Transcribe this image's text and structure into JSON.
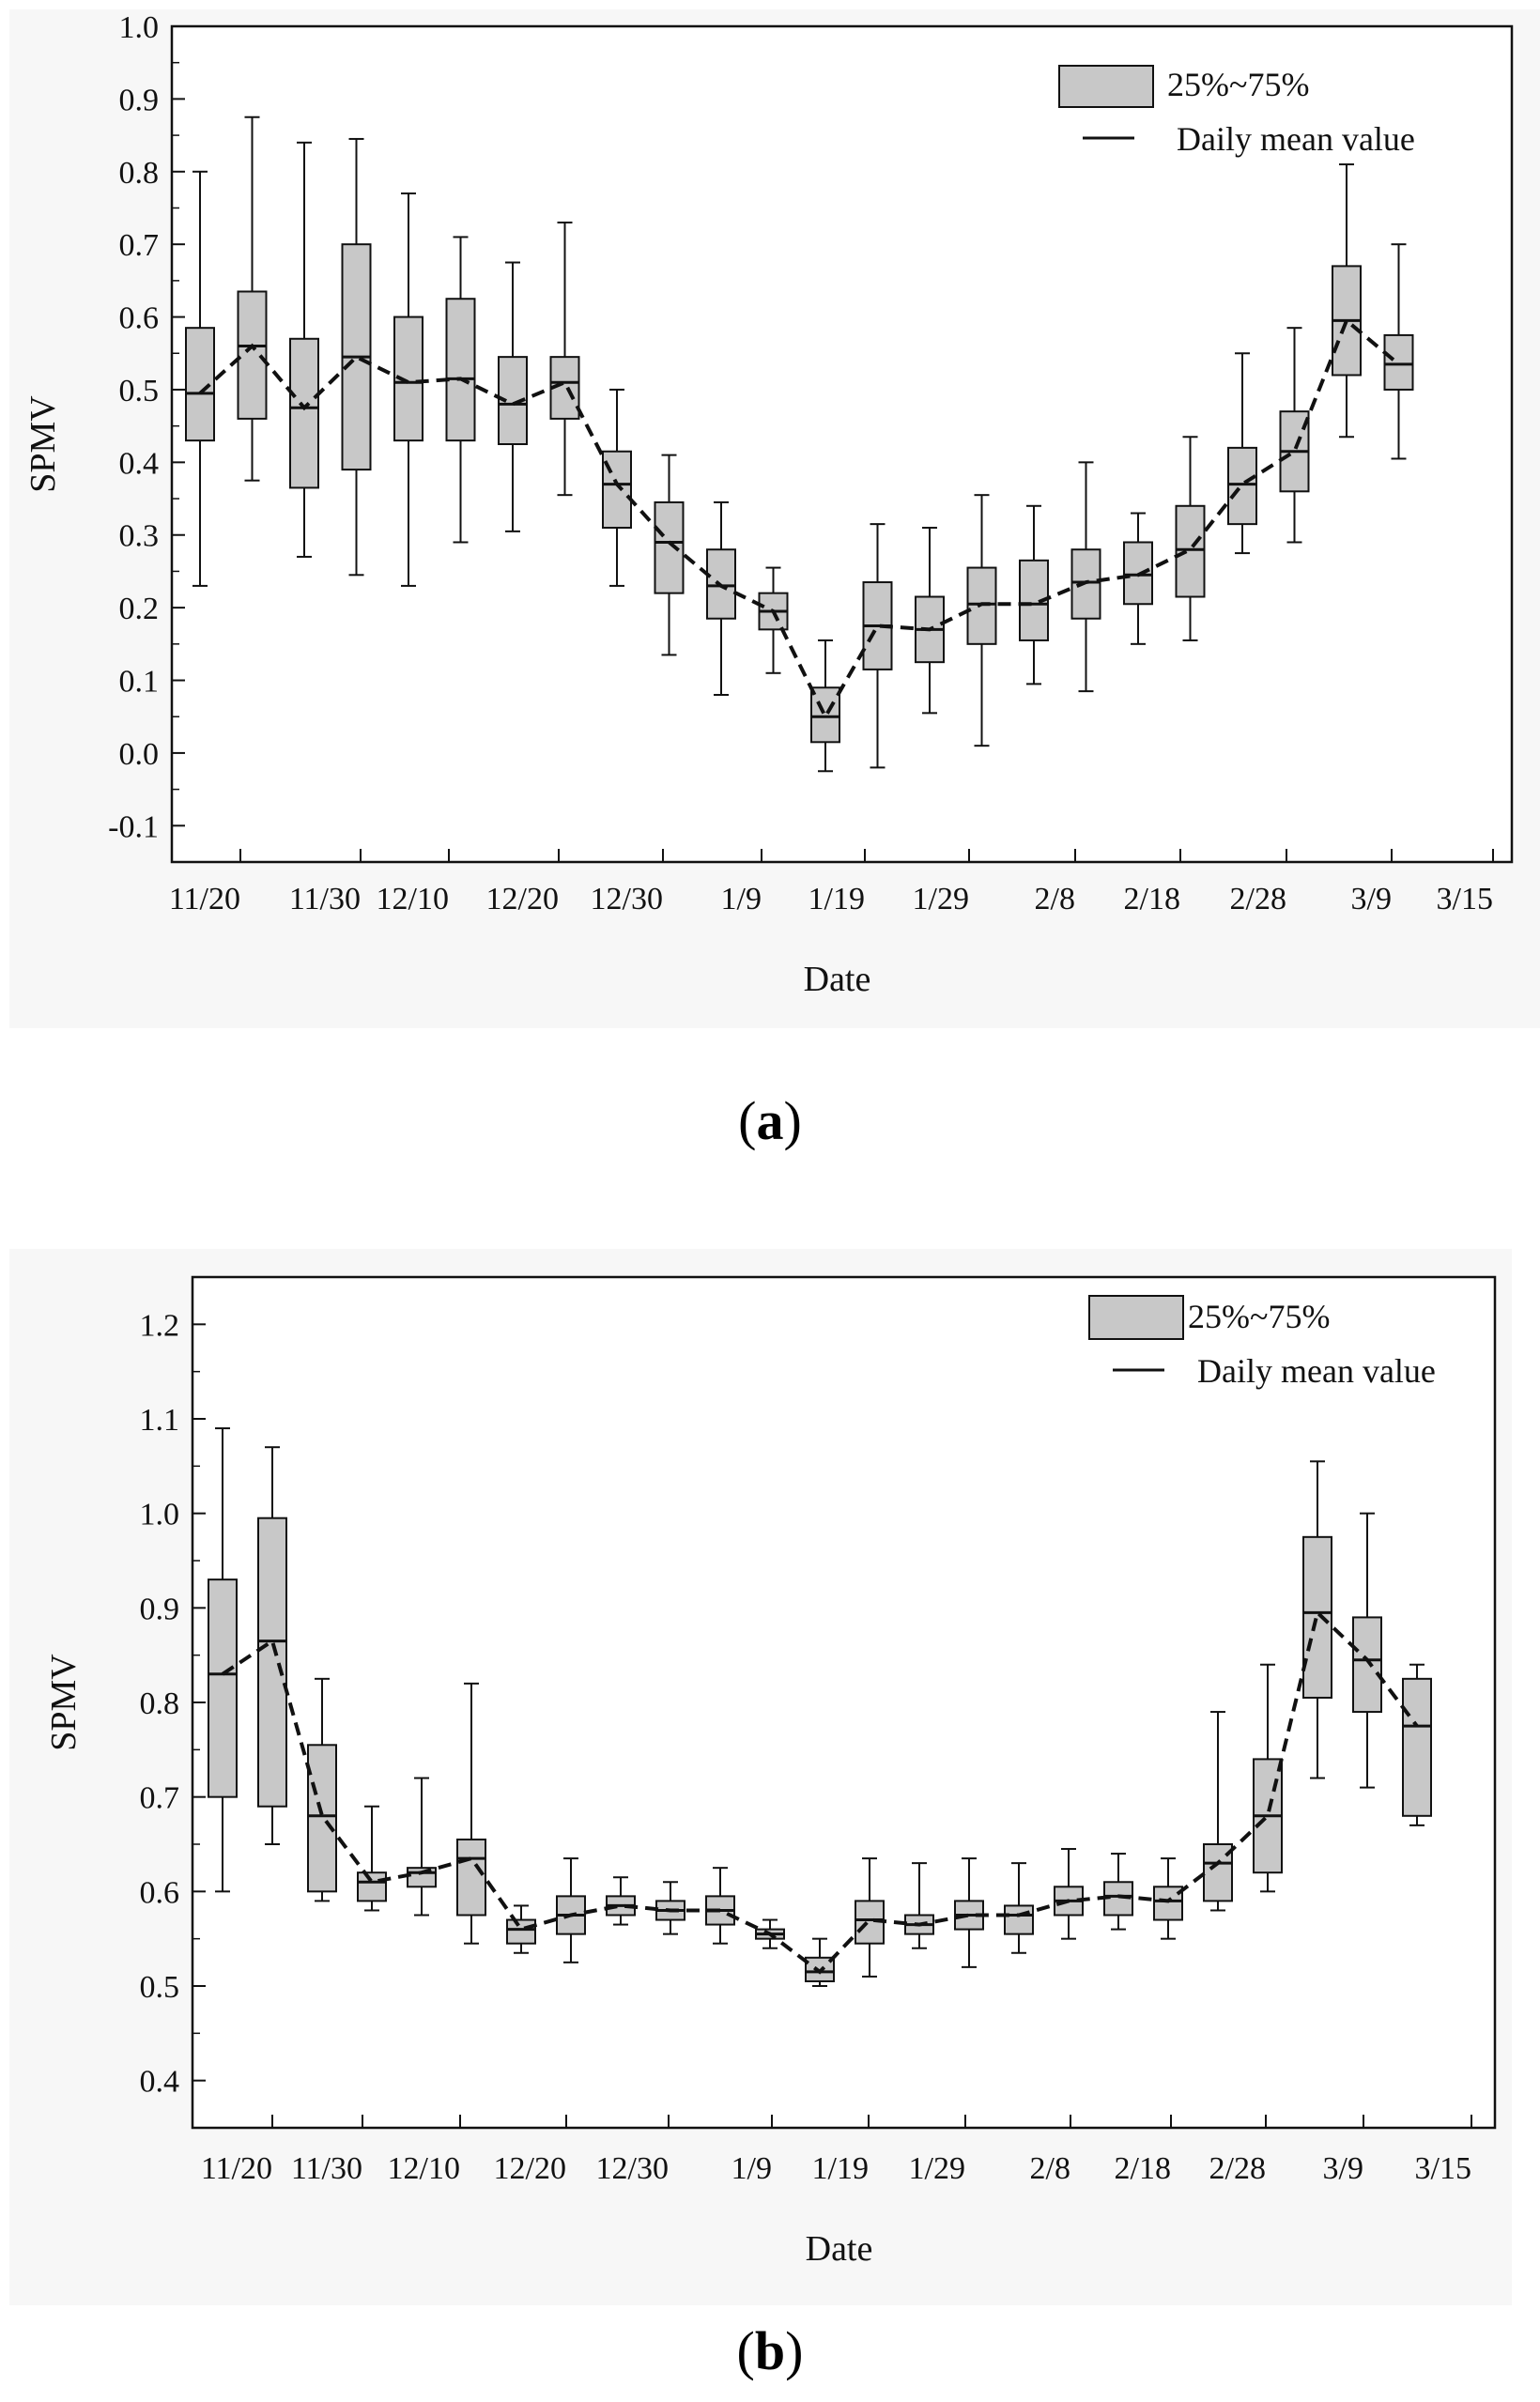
{
  "chart_data": [
    {
      "type": "box",
      "panel_label": "a",
      "xlabel": "Date",
      "ylabel": "SPMV",
      "ylim": [
        -0.15,
        1.0
      ],
      "yticks": [
        "-0.1",
        "0.0",
        "0.1",
        "0.2",
        "0.3",
        "0.4",
        "0.5",
        "0.6",
        "0.7",
        "0.8",
        "0.9",
        "1.0"
      ],
      "xticks": [
        "11/20",
        "11/30",
        "12/10",
        "12/20",
        "12/30",
        "1/9",
        "1/19",
        "1/29",
        "2/8",
        "2/18",
        "2/28",
        "3/9",
        "3/15"
      ],
      "legend": {
        "box_label": "25%~75%",
        "line_label": "Daily mean value",
        "position": "top-right"
      },
      "boxes": [
        {
          "min": 0.23,
          "q1": 0.43,
          "mean": 0.495,
          "q3": 0.585,
          "max": 0.8
        },
        {
          "min": 0.375,
          "q1": 0.46,
          "mean": 0.56,
          "q3": 0.635,
          "max": 0.875
        },
        {
          "min": 0.27,
          "q1": 0.365,
          "mean": 0.475,
          "q3": 0.57,
          "max": 0.84
        },
        {
          "min": 0.245,
          "q1": 0.39,
          "mean": 0.545,
          "q3": 0.7,
          "max": 0.845
        },
        {
          "min": 0.23,
          "q1": 0.43,
          "mean": 0.51,
          "q3": 0.6,
          "max": 0.77
        },
        {
          "min": 0.29,
          "q1": 0.43,
          "mean": 0.515,
          "q3": 0.625,
          "max": 0.71
        },
        {
          "min": 0.305,
          "q1": 0.425,
          "mean": 0.48,
          "q3": 0.545,
          "max": 0.675
        },
        {
          "min": 0.355,
          "q1": 0.46,
          "mean": 0.51,
          "q3": 0.545,
          "max": 0.73
        },
        {
          "min": 0.23,
          "q1": 0.31,
          "mean": 0.37,
          "q3": 0.415,
          "max": 0.5
        },
        {
          "min": 0.135,
          "q1": 0.22,
          "mean": 0.29,
          "q3": 0.345,
          "max": 0.41
        },
        {
          "min": 0.08,
          "q1": 0.185,
          "mean": 0.23,
          "q3": 0.28,
          "max": 0.345
        },
        {
          "min": 0.11,
          "q1": 0.17,
          "mean": 0.195,
          "q3": 0.22,
          "max": 0.255
        },
        {
          "min": -0.025,
          "q1": 0.015,
          "mean": 0.05,
          "q3": 0.09,
          "max": 0.155
        },
        {
          "min": -0.02,
          "q1": 0.115,
          "mean": 0.175,
          "q3": 0.235,
          "max": 0.315
        },
        {
          "min": 0.055,
          "q1": 0.125,
          "mean": 0.17,
          "q3": 0.215,
          "max": 0.31
        },
        {
          "min": 0.01,
          "q1": 0.15,
          "mean": 0.205,
          "q3": 0.255,
          "max": 0.355
        },
        {
          "min": 0.095,
          "q1": 0.155,
          "mean": 0.205,
          "q3": 0.265,
          "max": 0.34
        },
        {
          "min": 0.085,
          "q1": 0.185,
          "mean": 0.235,
          "q3": 0.28,
          "max": 0.4
        },
        {
          "min": 0.15,
          "q1": 0.205,
          "mean": 0.245,
          "q3": 0.29,
          "max": 0.33
        },
        {
          "min": 0.155,
          "q1": 0.215,
          "mean": 0.28,
          "q3": 0.34,
          "max": 0.435
        },
        {
          "min": 0.275,
          "q1": 0.315,
          "mean": 0.37,
          "q3": 0.42,
          "max": 0.55
        },
        {
          "min": 0.29,
          "q1": 0.36,
          "mean": 0.415,
          "q3": 0.47,
          "max": 0.585
        },
        {
          "min": 0.435,
          "q1": 0.52,
          "mean": 0.595,
          "q3": 0.67,
          "max": 0.81
        },
        {
          "min": 0.405,
          "q1": 0.5,
          "mean": 0.535,
          "q3": 0.575,
          "max": 0.7
        }
      ]
    },
    {
      "type": "box",
      "panel_label": "b",
      "xlabel": "Date",
      "ylabel": "SPMV",
      "ylim": [
        0.35,
        1.25
      ],
      "yticks": [
        "0.4",
        "0.5",
        "0.6",
        "0.7",
        "0.8",
        "0.9",
        "1.0",
        "1.1",
        "1.2"
      ],
      "xticks": [
        "11/20",
        "11/30",
        "12/10",
        "12/20",
        "12/30",
        "1/9",
        "1/19",
        "1/29",
        "2/8",
        "2/18",
        "2/28",
        "3/9",
        "3/15"
      ],
      "legend": {
        "box_label": "25%~75%",
        "line_label": "Daily mean value",
        "position": "top-right"
      },
      "boxes": [
        {
          "min": 0.6,
          "q1": 0.7,
          "mean": 0.83,
          "q3": 0.93,
          "max": 1.09
        },
        {
          "min": 0.65,
          "q1": 0.69,
          "mean": 0.865,
          "q3": 0.995,
          "max": 1.07
        },
        {
          "min": 0.59,
          "q1": 0.6,
          "mean": 0.68,
          "q3": 0.755,
          "max": 0.825
        },
        {
          "min": 0.58,
          "q1": 0.59,
          "mean": 0.61,
          "q3": 0.62,
          "max": 0.69
        },
        {
          "min": 0.575,
          "q1": 0.605,
          "mean": 0.62,
          "q3": 0.625,
          "max": 0.72
        },
        {
          "min": 0.545,
          "q1": 0.575,
          "mean": 0.635,
          "q3": 0.655,
          "max": 0.82
        },
        {
          "min": 0.535,
          "q1": 0.545,
          "mean": 0.56,
          "q3": 0.57,
          "max": 0.585
        },
        {
          "min": 0.525,
          "q1": 0.555,
          "mean": 0.575,
          "q3": 0.595,
          "max": 0.635
        },
        {
          "min": 0.565,
          "q1": 0.575,
          "mean": 0.585,
          "q3": 0.595,
          "max": 0.615
        },
        {
          "min": 0.555,
          "q1": 0.57,
          "mean": 0.58,
          "q3": 0.59,
          "max": 0.61
        },
        {
          "min": 0.545,
          "q1": 0.565,
          "mean": 0.58,
          "q3": 0.595,
          "max": 0.625
        },
        {
          "min": 0.54,
          "q1": 0.55,
          "mean": 0.555,
          "q3": 0.56,
          "max": 0.57
        },
        {
          "min": 0.5,
          "q1": 0.505,
          "mean": 0.515,
          "q3": 0.53,
          "max": 0.55
        },
        {
          "min": 0.51,
          "q1": 0.545,
          "mean": 0.57,
          "q3": 0.59,
          "max": 0.635
        },
        {
          "min": 0.54,
          "q1": 0.555,
          "mean": 0.565,
          "q3": 0.575,
          "max": 0.63
        },
        {
          "min": 0.52,
          "q1": 0.56,
          "mean": 0.575,
          "q3": 0.59,
          "max": 0.635
        },
        {
          "min": 0.535,
          "q1": 0.555,
          "mean": 0.575,
          "q3": 0.585,
          "max": 0.63
        },
        {
          "min": 0.55,
          "q1": 0.575,
          "mean": 0.59,
          "q3": 0.605,
          "max": 0.645
        },
        {
          "min": 0.56,
          "q1": 0.575,
          "mean": 0.595,
          "q3": 0.61,
          "max": 0.64
        },
        {
          "min": 0.55,
          "q1": 0.57,
          "mean": 0.59,
          "q3": 0.605,
          "max": 0.635
        },
        {
          "min": 0.58,
          "q1": 0.59,
          "mean": 0.63,
          "q3": 0.65,
          "max": 0.79
        },
        {
          "min": 0.6,
          "q1": 0.62,
          "mean": 0.68,
          "q3": 0.74,
          "max": 0.84
        },
        {
          "min": 0.72,
          "q1": 0.805,
          "mean": 0.895,
          "q3": 0.975,
          "max": 1.055
        },
        {
          "min": 0.71,
          "q1": 0.79,
          "mean": 0.845,
          "q3": 0.89,
          "max": 1.0
        },
        {
          "min": 0.67,
          "q1": 0.68,
          "mean": 0.775,
          "q3": 0.825,
          "max": 0.84
        }
      ]
    }
  ],
  "captions": {
    "a": "a",
    "b": "b"
  },
  "colors": {
    "box_fill": "#c8c8c8",
    "stroke": "#111111",
    "plot_bg": "#f7f7f7"
  }
}
